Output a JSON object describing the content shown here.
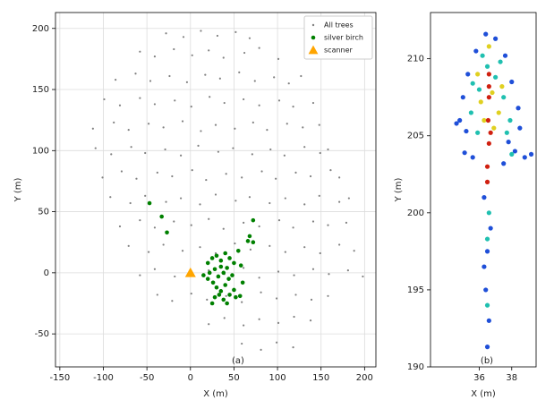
{
  "chart_data": [
    {
      "type": "scatter",
      "annotation": "(a)",
      "xlabel": "X (m)",
      "ylabel": "Y (m)",
      "xlim": [
        -155,
        213
      ],
      "ylim": [
        -77,
        213
      ],
      "xticks": [
        -150,
        -100,
        -50,
        0,
        50,
        100,
        150,
        200
      ],
      "yticks": [
        -50,
        0,
        50,
        100,
        150,
        200
      ],
      "grid": true,
      "legend": "upper right",
      "series": [
        {
          "name": "All trees",
          "color": "#808080",
          "marker": "point",
          "x": [
            -28,
            -8,
            12,
            31,
            52,
            68,
            -58,
            -41,
            -19,
            2,
            21,
            38,
            62,
            79,
            101,
            -86,
            -63,
            -46,
            -24,
            -4,
            17,
            34,
            56,
            74,
            96,
            113,
            127,
            -99,
            -81,
            -58,
            -41,
            -18,
            1,
            22,
            39,
            61,
            79,
            102,
            118,
            141,
            -112,
            -88,
            -71,
            -48,
            -31,
            -9,
            12,
            29,
            51,
            72,
            88,
            111,
            129,
            148,
            -109,
            -91,
            -68,
            -52,
            -29,
            -11,
            9,
            32,
            49,
            71,
            92,
            108,
            131,
            149,
            158,
            -101,
            -79,
            -62,
            -38,
            -21,
            2,
            18,
            41,
            59,
            82,
            98,
            121,
            138,
            161,
            171,
            -92,
            -69,
            -52,
            -28,
            -11,
            11,
            29,
            52,
            68,
            91,
            109,
            131,
            148,
            171,
            182,
            -81,
            -58,
            -41,
            -19,
            1,
            21,
            38,
            61,
            79,
            102,
            118,
            141,
            158,
            179,
            -71,
            -48,
            -31,
            -9,
            11,
            29,
            51,
            69,
            91,
            109,
            131,
            149,
            171,
            188,
            -58,
            -41,
            -18,
            21,
            39,
            61,
            79,
            101,
            119,
            141,
            159,
            181,
            198,
            -38,
            -21,
            1,
            19,
            41,
            59,
            81,
            99,
            121,
            139,
            158,
            21,
            39,
            61,
            79,
            101,
            119,
            138,
            59,
            81,
            99,
            118
          ],
          "y": [
            196,
            193,
            198,
            194,
            197,
            192,
            181,
            177,
            183,
            178,
            182,
            176,
            180,
            184,
            175,
            158,
            163,
            157,
            161,
            156,
            162,
            159,
            164,
            157,
            160,
            155,
            161,
            142,
            137,
            143,
            138,
            141,
            136,
            144,
            139,
            142,
            137,
            141,
            136,
            139,
            118,
            123,
            117,
            122,
            119,
            124,
            116,
            121,
            118,
            123,
            117,
            122,
            119,
            121,
            102,
            97,
            103,
            98,
            101,
            96,
            104,
            99,
            102,
            97,
            101,
            96,
            103,
            98,
            101,
            78,
            83,
            77,
            82,
            79,
            84,
            76,
            81,
            78,
            83,
            77,
            82,
            79,
            84,
            78,
            62,
            57,
            63,
            58,
            61,
            56,
            64,
            59,
            62,
            57,
            61,
            56,
            63,
            58,
            61,
            38,
            43,
            37,
            42,
            39,
            44,
            36,
            41,
            38,
            43,
            37,
            42,
            39,
            41,
            22,
            17,
            23,
            18,
            21,
            16,
            24,
            19,
            22,
            17,
            21,
            16,
            23,
            18,
            -2,
            3,
            -3,
            2,
            -1,
            4,
            -4,
            1,
            -2,
            3,
            -1,
            2,
            -3,
            -18,
            -23,
            -17,
            -22,
            -19,
            -24,
            -16,
            -21,
            -18,
            -22,
            -19,
            -42,
            -37,
            -43,
            -38,
            -41,
            -36,
            -39,
            -58,
            -63,
            -57,
            -61
          ]
        },
        {
          "name": "silver birch",
          "color": "#008000",
          "marker": "circle",
          "x": [
            -47,
            -33,
            -27,
            72,
            68,
            66,
            72,
            20,
            25,
            30,
            35,
            40,
            45,
            50,
            55,
            22,
            28,
            32,
            38,
            42,
            48,
            26,
            30,
            35,
            40,
            45,
            52,
            57,
            20,
            15,
            33,
            28,
            38,
            25,
            60,
            35,
            44,
            50,
            58,
            42
          ],
          "y": [
            57,
            46,
            33,
            43,
            30,
            26,
            25,
            8,
            12,
            14,
            10,
            16,
            12,
            8,
            18,
            0,
            3,
            -3,
            0,
            4,
            -2,
            -8,
            -12,
            -15,
            -10,
            -18,
            -20,
            -19,
            -5,
            -2,
            -18,
            -20,
            -22,
            -25,
            -8,
            5,
            -5,
            -14,
            6,
            -25
          ]
        },
        {
          "name": "scanner",
          "color": "#ffa500",
          "marker": "triangle",
          "x": [
            0
          ],
          "y": [
            0
          ]
        }
      ]
    },
    {
      "type": "scatter",
      "annotation": "(b)",
      "xlabel": "X (m)",
      "ylabel": "Y (m)",
      "xlim": [
        33,
        39.5
      ],
      "ylim": [
        190,
        213
      ],
      "xticks": [
        36,
        38
      ],
      "yticks": [
        190,
        195,
        200,
        205,
        210
      ],
      "grid": false,
      "series": [
        {
          "color": "#1f4fd8",
          "marker": "circle",
          "x": [
            34.8,
            35,
            35.3,
            35.8,
            36.4,
            37,
            37.6,
            38,
            38.4,
            38.5,
            37.8,
            35.2,
            34.6,
            38.2,
            38.8,
            39.2,
            37.5,
            36.3,
            36.7,
            36.5,
            36.4,
            36.6,
            36.5,
            36.3,
            35.6,
            35.1
          ],
          "y": [
            206,
            207.5,
            209,
            210.5,
            211.6,
            211.3,
            210.2,
            208.5,
            206.8,
            205.5,
            204.6,
            205.3,
            205.8,
            204,
            203.6,
            203.8,
            203.2,
            201,
            199,
            197.5,
            195,
            193,
            191.3,
            196.5,
            203.6,
            203.9
          ]
        },
        {
          "color": "#20c0b0",
          "marker": "circle",
          "x": [
            35.5,
            36,
            36.5,
            37,
            37.5,
            37.9,
            35.9,
            36.2,
            37.3,
            35.6,
            37.7,
            38,
            36.6,
            36.5,
            36.5
          ],
          "y": [
            206.5,
            208,
            209.5,
            208.8,
            207.5,
            206,
            205.2,
            210.2,
            209.8,
            208.4,
            205.2,
            203.8,
            200,
            198.3,
            194
          ]
        },
        {
          "color": "#e0d020",
          "marker": "circle",
          "x": [
            36.1,
            36.8,
            37.2,
            35.9,
            36.6,
            37.4,
            36.3,
            36.9
          ],
          "y": [
            207.2,
            207.8,
            206.5,
            209,
            210.8,
            208.2,
            206,
            205.5
          ]
        },
        {
          "color": "#d02010",
          "marker": "circle",
          "x": [
            36.6,
            36.6,
            36.55,
            36.6,
            36.5,
            36.5,
            36.7,
            36.6
          ],
          "y": [
            209,
            207.5,
            206,
            204.5,
            203,
            202,
            205.2,
            208.2
          ]
        }
      ]
    }
  ]
}
